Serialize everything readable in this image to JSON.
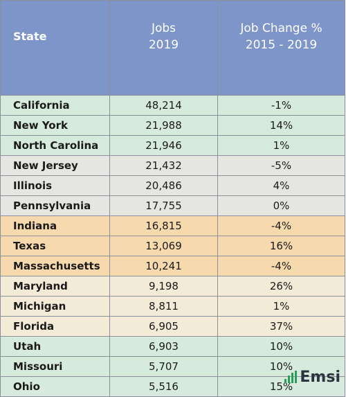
{
  "header": {
    "state": "State",
    "jobs_line1": "Jobs",
    "jobs_line2": "2019",
    "change_line1": "Job Change %",
    "change_line2": "2015 - 2019"
  },
  "colors": {
    "header_bg": "#7e95c9",
    "green": "#d7ebdc",
    "gray": "#e5e5e2",
    "orange": "#f6d9ad",
    "beige": "#f3ead7"
  },
  "rows": [
    {
      "state": "California",
      "jobs": "48,214",
      "change": "-1%",
      "color": "green"
    },
    {
      "state": "New York",
      "jobs": "21,988",
      "change": "14%",
      "color": "green"
    },
    {
      "state": "North Carolina",
      "jobs": "21,946",
      "change": "1%",
      "color": "green"
    },
    {
      "state": "New Jersey",
      "jobs": "21,432",
      "change": "-5%",
      "color": "gray"
    },
    {
      "state": "Illinois",
      "jobs": "20,486",
      "change": "4%",
      "color": "gray"
    },
    {
      "state": "Pennsylvania",
      "jobs": "17,755",
      "change": "0%",
      "color": "gray"
    },
    {
      "state": "Indiana",
      "jobs": "16,815",
      "change": "-4%",
      "color": "orange"
    },
    {
      "state": "Texas",
      "jobs": "13,069",
      "change": "16%",
      "color": "orange"
    },
    {
      "state": "Massachusetts",
      "jobs": "10,241",
      "change": "-4%",
      "color": "orange"
    },
    {
      "state": "Maryland",
      "jobs": "9,198",
      "change": "26%",
      "color": "beige"
    },
    {
      "state": "Michigan",
      "jobs": "8,811",
      "change": "1%",
      "color": "beige"
    },
    {
      "state": "Florida",
      "jobs": "6,905",
      "change": "37%",
      "color": "beige"
    },
    {
      "state": "Utah",
      "jobs": "6,903",
      "change": "10%",
      "color": "green"
    },
    {
      "state": "Missouri",
      "jobs": "5,707",
      "change": "10%",
      "color": "green"
    },
    {
      "state": "Ohio",
      "jobs": "5,516",
      "change": "15%",
      "color": "green"
    }
  ],
  "logo": {
    "text": "Emsi",
    "icon": "bar-chart-icon",
    "bar_levels": [
      0.35,
      0.6,
      0.85,
      1.0
    ]
  }
}
